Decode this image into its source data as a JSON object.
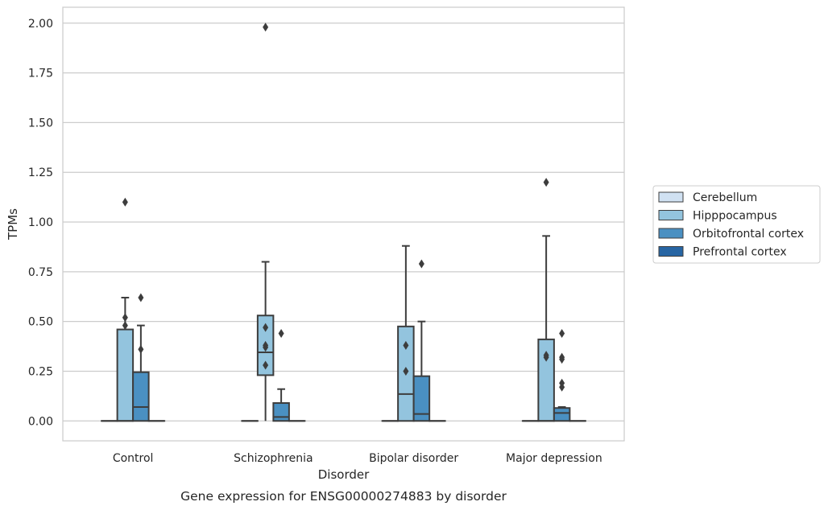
{
  "chart_data": {
    "type": "box",
    "xlabel": "Disorder",
    "ylabel": "TPMs",
    "caption": "Gene expression for ENSG00000274883 by disorder",
    "ylim": [
      -0.1,
      2.08
    ],
    "y_ticks": [
      "0.00",
      "0.25",
      "0.50",
      "0.75",
      "1.00",
      "1.25",
      "1.50",
      "1.75",
      "2.00"
    ],
    "y_tick_values": [
      0,
      0.25,
      0.5,
      0.75,
      1.0,
      1.25,
      1.5,
      1.75,
      2.0
    ],
    "grid": true,
    "legend_position": "right",
    "categories": [
      "Control",
      "Schizophrenia",
      "Bipolar disorder",
      "Major depression"
    ],
    "series": [
      {
        "name": "Cerebellum",
        "color": "#d0e1f2",
        "boxes": [
          {
            "q1": 0,
            "median": 0,
            "q3": 0,
            "whisker_low": 0,
            "whisker_high": 0,
            "outliers": []
          },
          {
            "q1": 0,
            "median": 0,
            "q3": 0,
            "whisker_low": 0,
            "whisker_high": 0,
            "outliers": []
          },
          {
            "q1": 0,
            "median": 0,
            "q3": 0,
            "whisker_low": 0,
            "whisker_high": 0,
            "outliers": []
          },
          {
            "q1": 0,
            "median": 0,
            "q3": 0,
            "whisker_low": 0,
            "whisker_high": 0,
            "outliers": []
          }
        ]
      },
      {
        "name": "Hipppocampus",
        "color": "#93c4de",
        "boxes": [
          {
            "q1": 0,
            "median": 0,
            "q3": 0.46,
            "whisker_low": 0,
            "whisker_high": 0.62,
            "outliers": [
              0.48,
              0.52,
              1.1
            ]
          },
          {
            "q1": 0.23,
            "median": 0.345,
            "q3": 0.53,
            "whisker_low": 0,
            "whisker_high": 0.8,
            "outliers": [
              0.28,
              0.37,
              0.38,
              0.47,
              1.98
            ]
          },
          {
            "q1": 0,
            "median": 0.135,
            "q3": 0.475,
            "whisker_low": 0,
            "whisker_high": 0.88,
            "outliers": [
              0.25,
              0.38
            ]
          },
          {
            "q1": 0,
            "median": 0,
            "q3": 0.41,
            "whisker_low": 0,
            "whisker_high": 0.93,
            "outliers": [
              0.32,
              0.33,
              1.2
            ]
          }
        ]
      },
      {
        "name": "Orbitofrontal cortex",
        "color": "#4a90c2",
        "boxes": [
          {
            "q1": 0,
            "median": 0.07,
            "q3": 0.245,
            "whisker_low": 0,
            "whisker_high": 0.48,
            "outliers": [
              0.36,
              0.62
            ]
          },
          {
            "q1": 0,
            "median": 0.02,
            "q3": 0.09,
            "whisker_low": 0,
            "whisker_high": 0.16,
            "outliers": [
              0.44
            ]
          },
          {
            "q1": 0,
            "median": 0.035,
            "q3": 0.225,
            "whisker_low": 0,
            "whisker_high": 0.5,
            "outliers": [
              0.79
            ]
          },
          {
            "q1": 0,
            "median": 0.04,
            "q3": 0.065,
            "whisker_low": 0,
            "whisker_high": 0.07,
            "outliers": [
              0.17,
              0.19,
              0.31,
              0.32,
              0.44
            ]
          }
        ]
      },
      {
        "name": "Prefrontal cortex",
        "color": "#2765a3",
        "boxes": [
          {
            "q1": 0,
            "median": 0,
            "q3": 0,
            "whisker_low": 0,
            "whisker_high": 0,
            "outliers": []
          },
          {
            "q1": 0,
            "median": 0,
            "q3": 0,
            "whisker_low": 0,
            "whisker_high": 0,
            "outliers": []
          },
          {
            "q1": 0,
            "median": 0,
            "q3": 0,
            "whisker_low": 0,
            "whisker_high": 0,
            "outliers": []
          },
          {
            "q1": 0,
            "median": 0,
            "q3": 0,
            "whisker_low": 0,
            "whisker_high": 0,
            "outliers": []
          }
        ]
      }
    ]
  }
}
